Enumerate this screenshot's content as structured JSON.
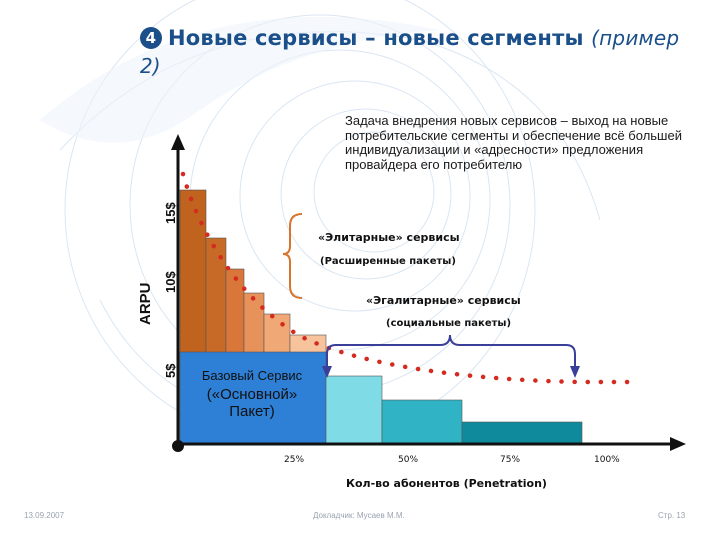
{
  "slide": {
    "title_number": "4",
    "title": "Новые сервисы – новые сегменты",
    "title_paren": "(пример",
    "title_cont": "2)",
    "description": "Задача внедрения новых сервисов – выход на новые потребительские сегменты и обеспечение всё большей индивидуализации и «адресности» предложения провайдера его потребителю"
  },
  "chart": {
    "y_axis_label": "ARPU",
    "y_ticks": [
      "15$",
      "10$",
      "5$"
    ],
    "elite_label": "«Элитарные» сервисы",
    "elite_sub": "(Расширенные пакеты)",
    "egal_label": "«Эгалитарные» сервисы",
    "egal_sub": "(социальные пакеты)",
    "base_line1": "Базовый Сервис",
    "base_line2": "(«Основной»",
    "base_line3": "Пакет)",
    "x_ticks": [
      "25%",
      "50%",
      "75%",
      "100%"
    ],
    "x_axis_label": "Кол-во абонентов (Penetration)"
  },
  "footer": {
    "date": "13.09.2007",
    "speaker": "Докладчик: Мусаев М.М.",
    "page": "Стр. 13"
  },
  "colors": {
    "title": "#1b4f8a",
    "bar_dark": "#c0631f",
    "bar_mid": "#d9773a",
    "bar_light": "#f0a877",
    "base_bar": "#2e7fd6",
    "bar_cyan": "#7fdbe6",
    "bar_teal": "#30b3c4",
    "bar_deep": "#0f8a9c",
    "curve": "#d42a1f",
    "bracket_elite": "#d7752e",
    "bracket_egal": "#3a3f99"
  }
}
